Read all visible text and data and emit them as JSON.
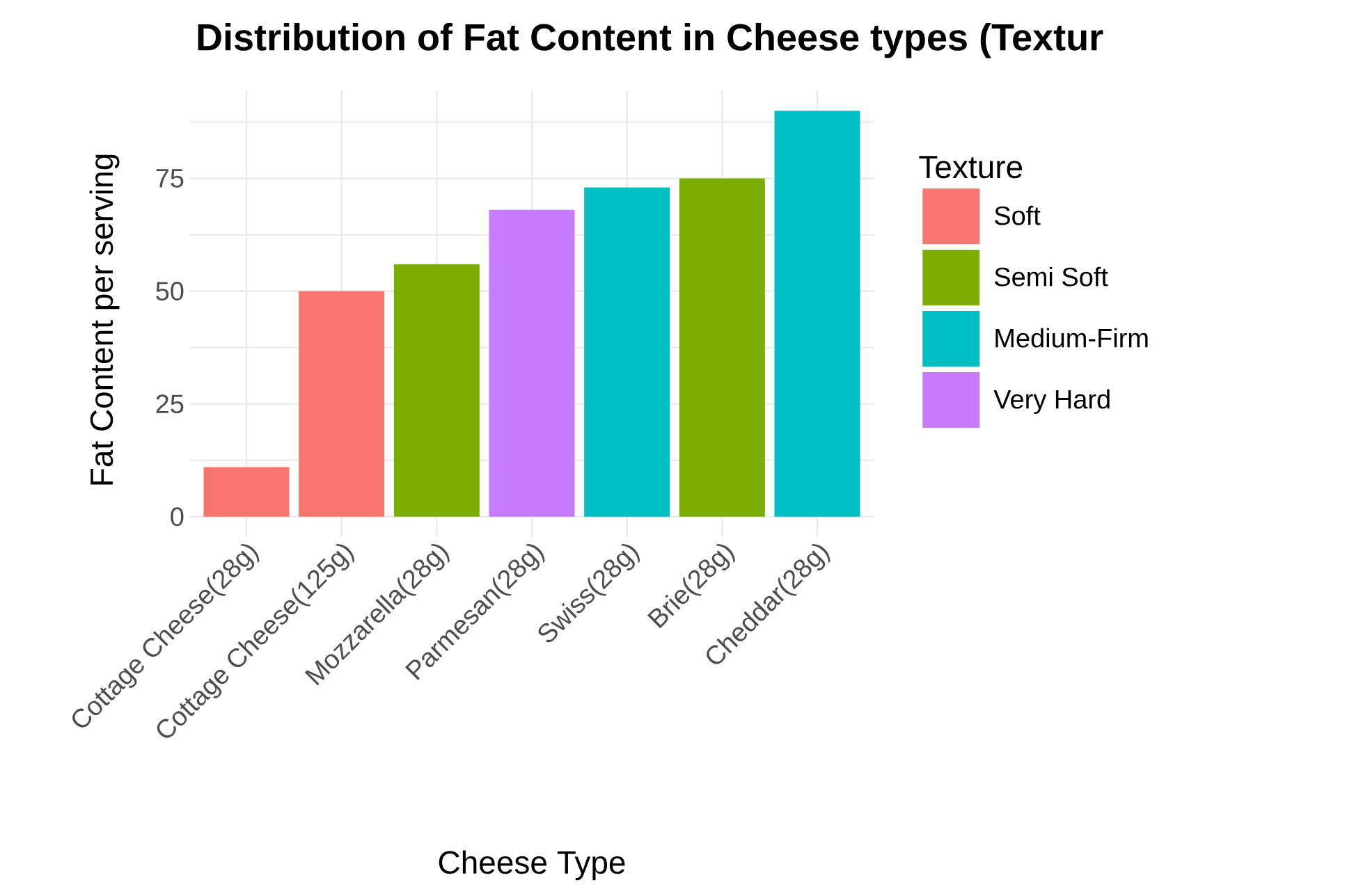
{
  "chart_data": {
    "type": "bar",
    "title": "Distribution of Fat Content in Cheese types (Textur",
    "xlabel": "Cheese Type",
    "ylabel": "Fat Content per serving",
    "legend_title": "Texture",
    "categories": [
      "Cottage Cheese(28g)",
      "Cottage Cheese(125g)",
      "Mozzarella(28g)",
      "Parmesan(28g)",
      "Swiss(28g)",
      "Brie(28g)",
      "Cheddar(28g)"
    ],
    "series": [
      {
        "name": "Soft",
        "color": "#f8766d",
        "values": [
          11,
          50,
          null,
          null,
          null,
          null,
          null
        ]
      },
      {
        "name": "Semi Soft",
        "color": "#7cae00",
        "values": [
          null,
          null,
          56,
          null,
          null,
          75,
          null
        ]
      },
      {
        "name": "Medium-Firm",
        "color": "#00bfc4",
        "values": [
          null,
          null,
          null,
          null,
          73,
          null,
          90
        ]
      },
      {
        "name": "Very Hard",
        "color": "#c77cff",
        "values": [
          null,
          null,
          null,
          68,
          null,
          null,
          null
        ]
      }
    ],
    "ylim": [
      -4.5,
      94.5
    ],
    "yticks": [
      0,
      {
        "value": 12.5,
        "label": null
      },
      25,
      {
        "value": 37.5,
        "label": null
      },
      50,
      {
        "value": 62.5,
        "label": null
      },
      75,
      {
        "value": 87.5,
        "label": null
      }
    ],
    "grid": true,
    "legend": "right"
  }
}
